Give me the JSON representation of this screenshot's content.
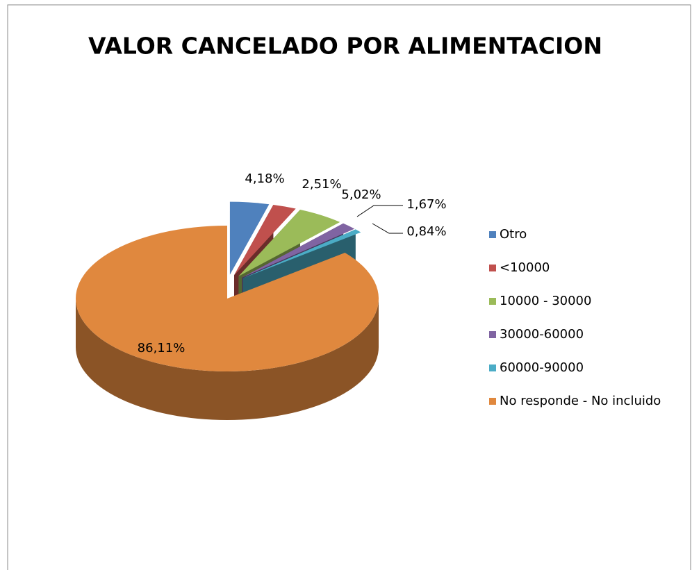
{
  "chart_data": {
    "type": "pie",
    "title": "VALOR CANCELADO POR ALIMENTACION",
    "categories": [
      "Otro",
      "<10000",
      "10000 - 30000",
      "30000-60000",
      "60000-90000",
      "No responde - No incluido"
    ],
    "values": [
      4.18,
      2.51,
      5.02,
      1.67,
      0.84,
      86.11
    ],
    "value_labels": [
      "4,18%",
      "2,51%",
      "5,02%",
      "1,67%",
      "0,84%",
      "86,11%"
    ],
    "colors": [
      "#4f81bd",
      "#c0504d",
      "#9bbb59",
      "#8064a2",
      "#4bacc6",
      "#e0883e"
    ],
    "legend": "right"
  }
}
